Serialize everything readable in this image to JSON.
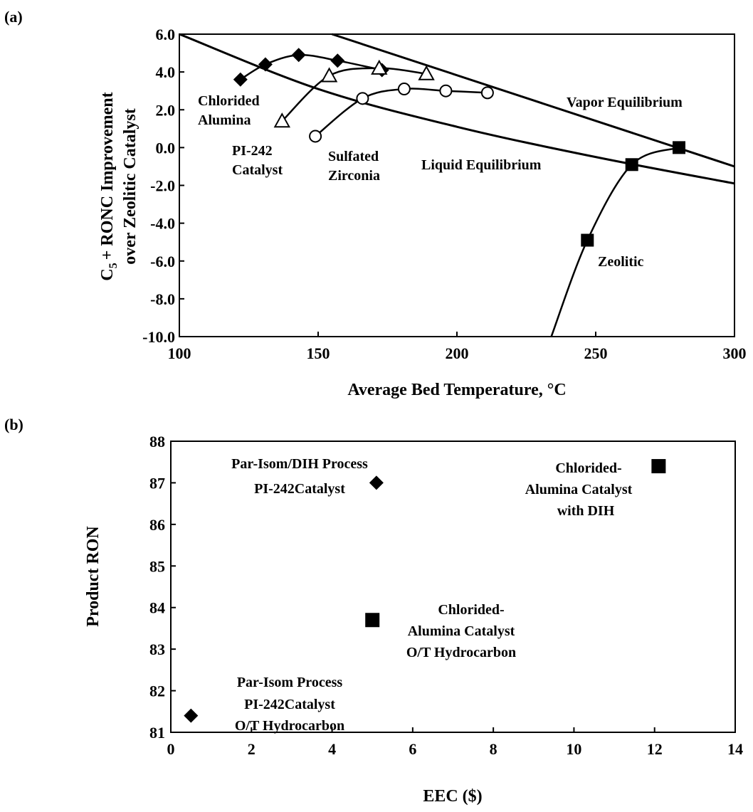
{
  "chart_data": [
    {
      "panel_label": "(a)",
      "type": "line",
      "xlabel": "Average Bed Temperature, °C",
      "ylabel_main": "C",
      "ylabel_sub": "5",
      "ylabel_rest": "+ RONC Improvement",
      "ylabel_line2": "over Zeolitic Catalyst",
      "xlim": [
        100,
        300
      ],
      "ylim": [
        -10,
        6
      ],
      "xticks": [
        "100",
        "150",
        "200",
        "250",
        "300"
      ],
      "yticks": [
        "6.0",
        "4.0",
        "2.0",
        "0.0",
        "-2.0",
        "-4.0",
        "-6.0",
        "-8.0",
        "-10.0"
      ],
      "ytick_values": [
        6,
        4,
        2,
        0,
        -2,
        -4,
        -6,
        -8,
        -10
      ],
      "xtick_values": [
        100,
        150,
        200,
        250,
        300
      ],
      "grid": false,
      "equilibrium_lines": [
        {
          "name": "Vapor Equilibrium",
          "x": [
            155,
            300
          ],
          "y": [
            6.0,
            -1.0
          ]
        },
        {
          "name": "Liquid Equilibrium",
          "x": [
            100,
            150,
            200,
            250,
            300
          ],
          "y": [
            6.0,
            3.1,
            1.1,
            -0.5,
            -1.9
          ]
        }
      ],
      "series": [
        {
          "name": "Chlorided Alumina",
          "marker": "diamond-filled",
          "x": [
            122,
            131,
            143,
            157,
            173
          ],
          "y": [
            3.6,
            4.4,
            4.9,
            4.6,
            4.1
          ]
        },
        {
          "name": "PI-242 Catalyst",
          "marker": "triangle-open",
          "x": [
            137,
            154,
            172,
            189
          ],
          "y": [
            1.4,
            3.8,
            4.2,
            3.9
          ]
        },
        {
          "name": "Sulfated Zirconia",
          "marker": "circle-open",
          "x": [
            149,
            166,
            181,
            196,
            211
          ],
          "y": [
            0.6,
            2.6,
            3.1,
            3.0,
            2.9
          ]
        },
        {
          "name": "Zeolitic",
          "marker": "square-filled",
          "x": [
            234,
            247,
            263,
            280
          ],
          "y": [
            -10.0,
            -4.9,
            -0.9,
            0.0
          ],
          "marker_indices": [
            1,
            2,
            3
          ]
        }
      ],
      "annotations": [
        {
          "id": "chlorided-line1",
          "text": "Chlorided"
        },
        {
          "id": "chlorided-line2",
          "text": "Alumina"
        },
        {
          "id": "pi242-line1",
          "text": "PI-242"
        },
        {
          "id": "pi242-line2",
          "text": "Catalyst"
        },
        {
          "id": "sulfated-line1",
          "text": "Sulfated"
        },
        {
          "id": "sulfated-line2",
          "text": "Zirconia"
        },
        {
          "id": "liquid",
          "text": "Liquid Equilibrium"
        },
        {
          "id": "vapor",
          "text": "Vapor Equilibrium"
        },
        {
          "id": "zeolitic",
          "text": "Zeolitic"
        }
      ]
    },
    {
      "panel_label": "(b)",
      "type": "scatter",
      "xlabel": "EEC ($)",
      "ylabel": "Product RON",
      "xlim": [
        0,
        14
      ],
      "ylim": [
        81,
        88
      ],
      "xticks": [
        "0",
        "2",
        "4",
        "6",
        "8",
        "10",
        "12",
        "14"
      ],
      "xtick_values": [
        0,
        2,
        4,
        6,
        8,
        10,
        12,
        14
      ],
      "yticks": [
        "88",
        "87",
        "86",
        "85",
        "84",
        "83",
        "82",
        "81"
      ],
      "ytick_values": [
        88,
        87,
        86,
        85,
        84,
        83,
        82,
        81
      ],
      "grid": false,
      "points": [
        {
          "marker": "diamond",
          "x": 5.1,
          "y": 87.0,
          "label": [
            "Par-Isom/DIH Process",
            "PI-242Catalyst"
          ]
        },
        {
          "marker": "square",
          "x": 12.1,
          "y": 87.4,
          "label": [
            "Chlorided-",
            "Alumina Catalyst",
            "with DIH"
          ]
        },
        {
          "marker": "square",
          "x": 5.0,
          "y": 83.7,
          "label": [
            "Chlorided-",
            "Alumina Catalyst",
            "O/T Hydrocarbon"
          ]
        },
        {
          "marker": "diamond",
          "x": 0.5,
          "y": 81.4,
          "label": [
            "Par-Isom Process",
            "PI-242Catalyst",
            "O/T Hydrocarbon"
          ]
        }
      ]
    }
  ]
}
